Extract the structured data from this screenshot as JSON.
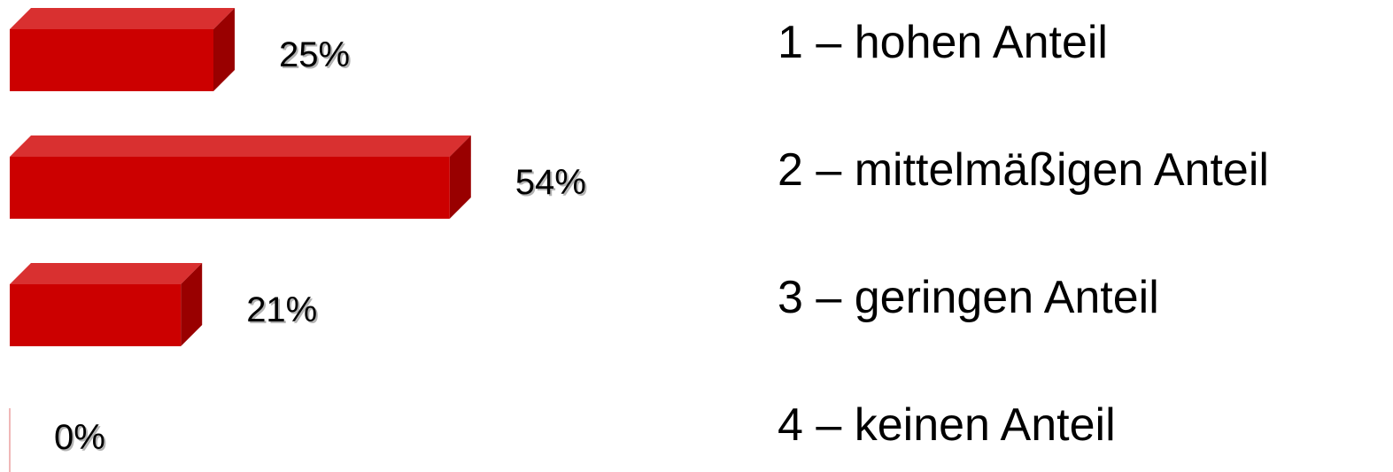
{
  "chart_data": {
    "type": "bar",
    "orientation": "horizontal",
    "style": "3d",
    "categories": [
      "1 – hohen Anteil",
      "2 – mittelmäßigen Anteil",
      "3 – geringen Anteil",
      "4 – keinen Anteil"
    ],
    "values": [
      25,
      54,
      21,
      0
    ],
    "value_labels": [
      "25%",
      "54%",
      "21%",
      "0%"
    ],
    "unit": "%",
    "xlim": [
      0,
      54
    ],
    "grid": false,
    "legend": "none",
    "colors": {
      "bar_front": "#cc0000",
      "bar_top": "#d93030",
      "bar_side": "#990000",
      "zero_line": "#f0b8b8"
    }
  }
}
